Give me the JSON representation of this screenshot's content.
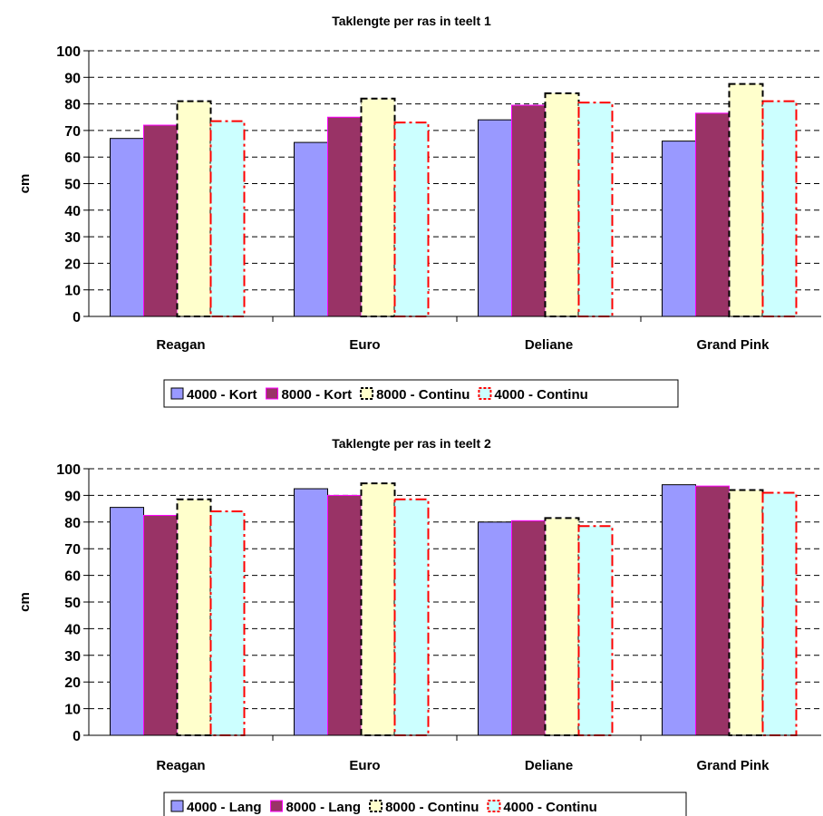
{
  "chart_data": [
    {
      "type": "bar",
      "title": "Taklengte per ras in teelt 1",
      "ylabel": "cm",
      "xlabel": "",
      "ylim": [
        0,
        100
      ],
      "yticks": [
        0,
        10,
        20,
        30,
        40,
        50,
        60,
        70,
        80,
        90,
        100
      ],
      "grid": true,
      "legend_position": "bottom",
      "categories": [
        "Reagan",
        "Euro",
        "Deliane",
        "Grand Pink"
      ],
      "series": [
        {
          "name": "4000 - Kort",
          "values": [
            67,
            65.5,
            74,
            66
          ],
          "fill": "#9999ff",
          "stroke": "#000000",
          "dash": "solid"
        },
        {
          "name": "8000 - Kort",
          "values": [
            72,
            75,
            79.5,
            76.5
          ],
          "fill": "#993366",
          "stroke": "#ff00ff",
          "dash": "solid"
        },
        {
          "name": "8000 - Continu",
          "values": [
            81,
            82,
            84,
            87.5
          ],
          "fill": "#ffffcc",
          "stroke": "#000000",
          "dash": "dashed"
        },
        {
          "name": "4000 - Continu",
          "values": [
            73.5,
            73,
            80.5,
            81
          ],
          "fill": "#ccffff",
          "stroke": "#ff0000",
          "dash": "dashdot"
        }
      ]
    },
    {
      "type": "bar",
      "title": "Taklengte per ras in teelt 2",
      "ylabel": "cm",
      "xlabel": "",
      "ylim": [
        0,
        100
      ],
      "yticks": [
        0,
        10,
        20,
        30,
        40,
        50,
        60,
        70,
        80,
        90,
        100
      ],
      "grid": true,
      "legend_position": "bottom",
      "categories": [
        "Reagan",
        "Euro",
        "Deliane",
        "Grand Pink"
      ],
      "series": [
        {
          "name": "4000 - Lang",
          "values": [
            85.5,
            92.5,
            80,
            94
          ],
          "fill": "#9999ff",
          "stroke": "#000000",
          "dash": "solid"
        },
        {
          "name": "8000 - Lang",
          "values": [
            82.5,
            90,
            80.5,
            93.5
          ],
          "fill": "#993366",
          "stroke": "#ff00ff",
          "dash": "solid"
        },
        {
          "name": "8000 - Continu",
          "values": [
            88.5,
            94.5,
            81.5,
            92
          ],
          "fill": "#ffffcc",
          "stroke": "#000000",
          "dash": "dashed"
        },
        {
          "name": "4000 - Continu",
          "values": [
            84,
            88.5,
            78.5,
            91
          ],
          "fill": "#ccffff",
          "stroke": "#ff0000",
          "dash": "dashdot"
        }
      ]
    }
  ]
}
